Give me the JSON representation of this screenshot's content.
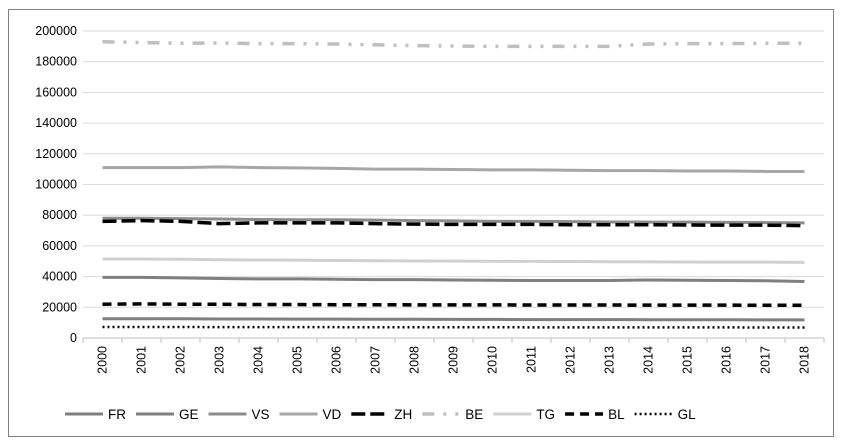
{
  "chart_data": {
    "type": "line",
    "title": "",
    "xlabel": "",
    "ylabel": "",
    "x": [
      "2000",
      "2001",
      "2002",
      "2003",
      "2004",
      "2005",
      "2006",
      "2007",
      "2008",
      "2009",
      "2010",
      "2011",
      "2012",
      "2013",
      "2014",
      "2015",
      "2016",
      "2017",
      "2018"
    ],
    "ylim": [
      0,
      200000
    ],
    "yticks": [
      "0",
      "20000",
      "40000",
      "60000",
      "80000",
      "100000",
      "120000",
      "140000",
      "160000",
      "180000",
      "200000"
    ],
    "grid": "horizontal",
    "legend_position": "bottom",
    "series": [
      {
        "name": "FR",
        "color": "#7f7f7f",
        "dash": "solid",
        "values": [
          12500,
          12500,
          12500,
          12400,
          12400,
          12300,
          12300,
          12200,
          12200,
          12100,
          12100,
          12000,
          12000,
          12000,
          11900,
          11900,
          11900,
          11800,
          11800
        ]
      },
      {
        "name": "GE",
        "color": "#7f7f7f",
        "dash": "solid",
        "values": [
          39500,
          39500,
          39200,
          38800,
          38500,
          38500,
          38300,
          38000,
          38000,
          37800,
          37600,
          37500,
          37500,
          37500,
          37800,
          37600,
          37500,
          37300,
          36800
        ]
      },
      {
        "name": "VS",
        "color": "#8c8c8c",
        "dash": "solid",
        "values": [
          78000,
          78000,
          77800,
          77500,
          77200,
          77000,
          77000,
          76800,
          76500,
          76300,
          76000,
          76000,
          75800,
          75600,
          75500,
          75500,
          75300,
          75200,
          75000
        ]
      },
      {
        "name": "VD",
        "color": "#a6a6a6",
        "dash": "solid",
        "values": [
          111000,
          111000,
          111000,
          111500,
          111000,
          110800,
          110500,
          110000,
          110000,
          109800,
          109500,
          109500,
          109300,
          109000,
          109000,
          108800,
          108800,
          108500,
          108500
        ]
      },
      {
        "name": "ZH",
        "color": "#000000",
        "dash": "longdash",
        "values": [
          76000,
          76500,
          76000,
          74500,
          75000,
          75000,
          75000,
          74500,
          74200,
          74000,
          74000,
          74000,
          73800,
          73800,
          73800,
          73600,
          73500,
          73500,
          73200
        ]
      },
      {
        "name": "BE",
        "color": "#bfbfbf",
        "dash": "dashdotdot",
        "values": [
          193000,
          192500,
          192000,
          192200,
          191800,
          191800,
          191500,
          191000,
          190500,
          190200,
          190000,
          190000,
          190000,
          190000,
          191500,
          191800,
          191800,
          192000,
          192000
        ]
      },
      {
        "name": "TG",
        "color": "#d0d0d0",
        "dash": "solid",
        "values": [
          51500,
          51500,
          51300,
          51000,
          50800,
          50700,
          50500,
          50300,
          50200,
          50100,
          50000,
          49900,
          49800,
          49700,
          49600,
          49500,
          49400,
          49400,
          49300
        ]
      },
      {
        "name": "BL",
        "color": "#000000",
        "dash": "dash",
        "values": [
          22000,
          22200,
          22000,
          22000,
          21800,
          21800,
          21700,
          21700,
          21600,
          21600,
          21600,
          21500,
          21500,
          21500,
          21400,
          21400,
          21400,
          21300,
          21300
        ]
      },
      {
        "name": "GL",
        "color": "#000000",
        "dash": "dot",
        "values": [
          7200,
          7200,
          7150,
          7100,
          7100,
          7100,
          7050,
          7000,
          7000,
          7000,
          7000,
          6950,
          6950,
          6900,
          6900,
          6900,
          6900,
          6850,
          6850
        ]
      }
    ]
  }
}
